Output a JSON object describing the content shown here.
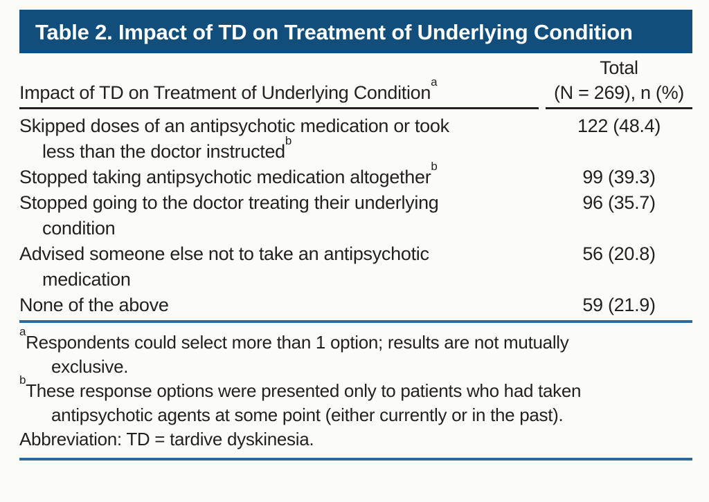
{
  "title": {
    "text": "Table 2. Impact of TD on Treatment of Underlying Condition"
  },
  "table": {
    "header": {
      "label": "Impact of TD on Treatment of Underlying Condition",
      "label_sup": "a",
      "value_line1": "Total",
      "value_line2": "(N = 269), n (%)"
    },
    "rows": [
      {
        "line1": "Skipped doses of an antipsychotic medication or took",
        "line1_sup": "",
        "line2": "less than the doctor instructed",
        "line2_sup": "b",
        "value": "122 (48.4)"
      },
      {
        "line1": "Stopped taking antipsychotic medication altogether",
        "line1_sup": "b",
        "line2": "",
        "line2_sup": "",
        "value": "99 (39.3)"
      },
      {
        "line1": "Stopped going to the doctor treating their underlying",
        "line1_sup": "",
        "line2": "condition",
        "line2_sup": "",
        "value": "96 (35.7)"
      },
      {
        "line1": "Advised someone else not to take an antipsychotic",
        "line1_sup": "",
        "line2": "medication",
        "line2_sup": "",
        "value": "56 (20.8)"
      },
      {
        "line1": "None of the above",
        "line1_sup": "",
        "line2": "",
        "line2_sup": "",
        "value": "59 (21.9)"
      }
    ]
  },
  "footnotes": [
    {
      "marker": "a",
      "line1": "Respondents could select more than 1 option; results are not mutually",
      "line2": "exclusive."
    },
    {
      "marker": "b",
      "line1": "These response options were presented only to patients who had taken",
      "line2": "antipsychotic agents at some point (either currently or in the past)."
    }
  ],
  "abbreviation": "Abbreviation: TD = tardive dyskinesia.",
  "colors": {
    "banner_bg": "#114e7c",
    "banner_text": "#ffffff",
    "text": "#231f20",
    "header_rule": "#231f20",
    "blue_rule": "#2f689b",
    "page_bg": "#fbfcf8"
  }
}
